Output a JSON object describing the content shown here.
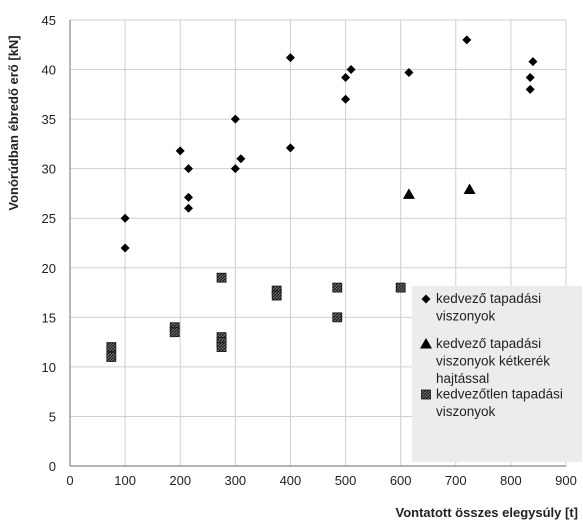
{
  "chart_data": {
    "type": "scatter",
    "title": "",
    "xlabel": "Vontatott összes elegysúly [t]",
    "ylabel": "Vonórúdban ébredő erő [kN]",
    "xlim": [
      0,
      900
    ],
    "ylim": [
      0,
      45
    ],
    "x_ticks": [
      "0",
      "100",
      "200",
      "300",
      "400",
      "500",
      "600",
      "700",
      "800",
      "900"
    ],
    "y_ticks": [
      "0",
      "5",
      "10",
      "15",
      "20",
      "25",
      "30",
      "35",
      "40",
      "45"
    ],
    "grid": true,
    "legend_position": "lower-right",
    "series": [
      {
        "name": "kedvező tapadási viszonyok",
        "marker": "diamond",
        "color": "#000000",
        "points": [
          [
            100,
            22
          ],
          [
            100,
            25
          ],
          [
            200,
            31.8
          ],
          [
            215,
            30
          ],
          [
            215,
            27.1
          ],
          [
            215,
            26
          ],
          [
            300,
            35
          ],
          [
            300,
            30
          ],
          [
            310,
            31
          ],
          [
            400,
            41.2
          ],
          [
            400,
            32.1
          ],
          [
            500,
            39.2
          ],
          [
            500,
            37
          ],
          [
            510,
            40
          ],
          [
            615,
            39.7
          ],
          [
            720,
            43
          ],
          [
            840,
            40.8
          ],
          [
            835,
            39.2
          ],
          [
            835,
            38
          ]
        ]
      },
      {
        "name": "kedvező tapadási viszonyok kétkerék hajtással",
        "marker": "triangle",
        "color": "#000000",
        "points": [
          [
            615,
            27.4
          ],
          [
            725,
            27.9
          ]
        ]
      },
      {
        "name": "kedvezőtlen tapadási viszonyok",
        "marker": "square-hatched",
        "color": "#333333",
        "points": [
          [
            75,
            12
          ],
          [
            75,
            11
          ],
          [
            190,
            14
          ],
          [
            190,
            13.5
          ],
          [
            275,
            19
          ],
          [
            275,
            13
          ],
          [
            275,
            12.5
          ],
          [
            275,
            12
          ],
          [
            375,
            17.7
          ],
          [
            375,
            17.2
          ],
          [
            485,
            18
          ],
          [
            485,
            15
          ],
          [
            600,
            18
          ]
        ]
      }
    ]
  },
  "legend": {
    "items": [
      {
        "marker": "diamond",
        "lines": [
          "kedvező tapadási",
          "viszonyok"
        ]
      },
      {
        "marker": "triangle",
        "lines": [
          "kedvező tapadási",
          "viszonyok kétkerék",
          "hajtással"
        ]
      },
      {
        "marker": "square-hatched",
        "lines": [
          "kedvezőtlen tapadási",
          "viszonyok"
        ]
      }
    ]
  },
  "colors": {
    "grid": "#cfcfcf",
    "axis": "#888888",
    "legend_bg": "#ececec",
    "marker": "#000000"
  }
}
